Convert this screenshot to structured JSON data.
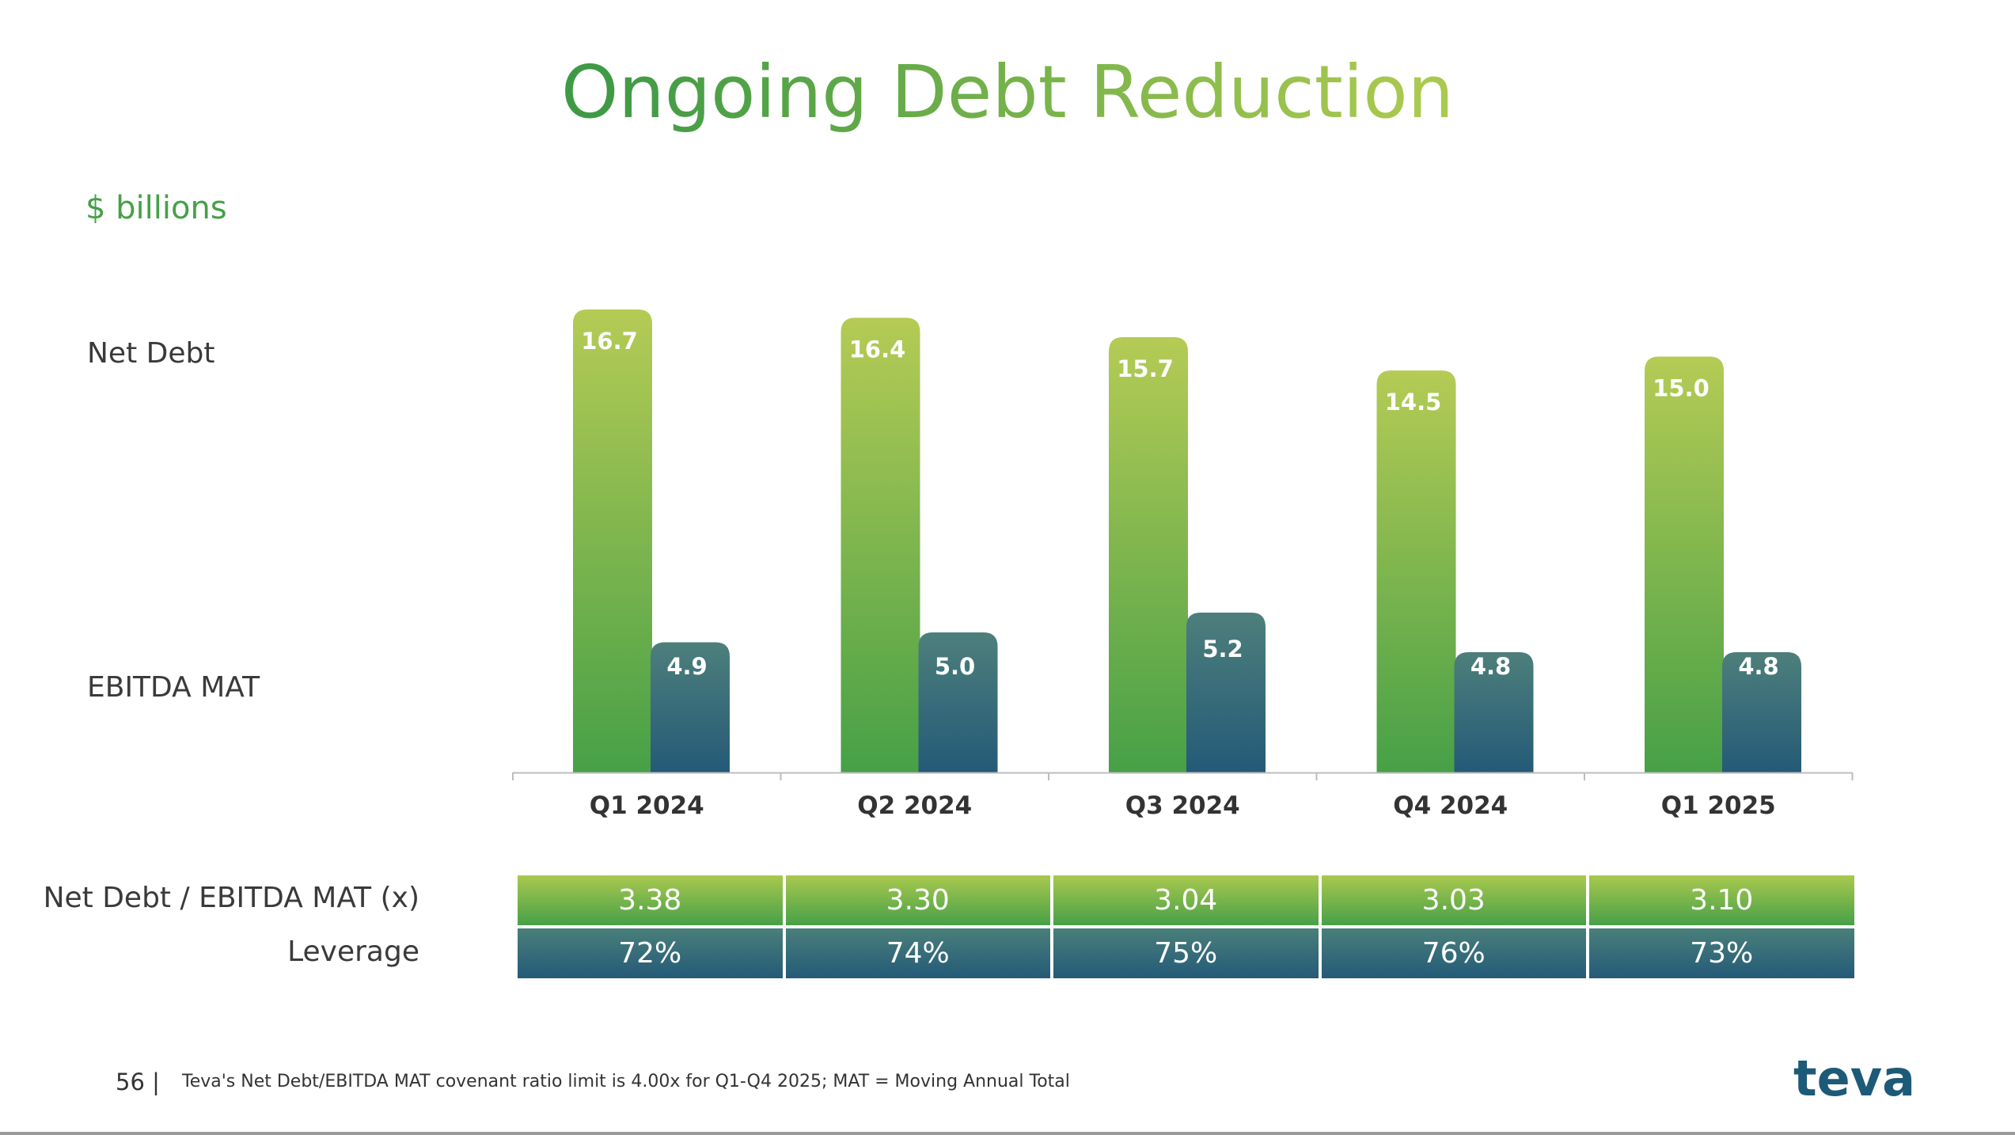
{
  "slide": {
    "title": "Ongoing Debt Reduction",
    "unit_label": "$ billions",
    "row_labels": {
      "net_debt": "Net Debt",
      "ebitda": "EBITDA MAT"
    },
    "table_labels": {
      "ratio": "Net Debt / EBITDA MAT (x)",
      "leverage": "Leverage"
    },
    "page_number": "56 |",
    "footnote": "Teva's Net Debt/EBITDA MAT covenant ratio limit is 4.00x for Q1-Q4 2025; MAT = Moving Annual Total",
    "logo_text": "teva"
  },
  "chart_data": {
    "type": "bar",
    "categories": [
      "Q1 2024",
      "Q2 2024",
      "Q3 2024",
      "Q4 2024",
      "Q1 2025"
    ],
    "series": [
      {
        "name": "Net Debt",
        "values": [
          16.7,
          16.4,
          15.7,
          14.5,
          15.0
        ],
        "labels": [
          "16.7",
          "16.4",
          "15.7",
          "14.5",
          "15.0"
        ],
        "color_top": "#b5cb55",
        "color_bottom": "#47a047"
      },
      {
        "name": "EBITDA MAT",
        "values": [
          4.9,
          5.0,
          5.2,
          4.8,
          4.8
        ],
        "labels": [
          "4.9",
          "5.0",
          "5.2",
          "4.8",
          "4.8"
        ],
        "color_top": "#4d7f7b",
        "color_bottom": "#245a78"
      }
    ],
    "title": "",
    "xlabel": "",
    "ylabel": "",
    "grid": false
  },
  "table": {
    "ratio": [
      "3.38",
      "3.30",
      "3.04",
      "3.03",
      "3.10"
    ],
    "leverage": [
      "72%",
      "74%",
      "75%",
      "76%",
      "73%"
    ]
  }
}
